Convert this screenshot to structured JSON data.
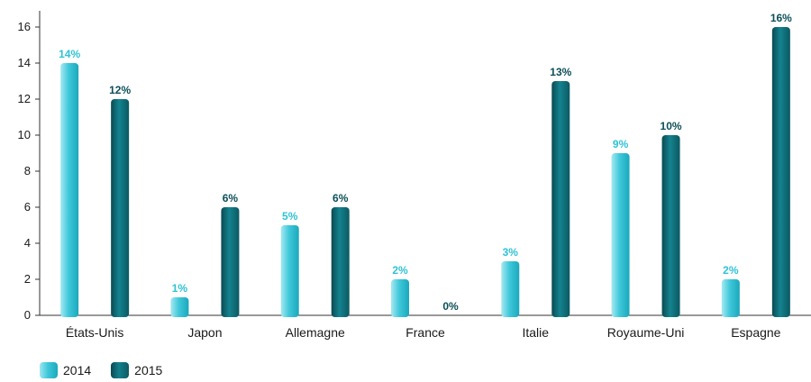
{
  "chart_data": {
    "type": "bar",
    "categories": [
      "États-Unis",
      "Japon",
      "Allemagne",
      "France",
      "Italie",
      "Royaume-Uni",
      "Espagne"
    ],
    "series": [
      {
        "name": "2014",
        "values": [
          14,
          1,
          5,
          2,
          3,
          9,
          2
        ],
        "labels": [
          "14%",
          "1%",
          "5%",
          "2%",
          "3%",
          "9%",
          "2%"
        ],
        "color": "#3fc8da",
        "label_color": "#2fc2d6"
      },
      {
        "name": "2015",
        "values": [
          12,
          6,
          6,
          0,
          13,
          10,
          16
        ],
        "labels": [
          "12%",
          "6%",
          "6%",
          "0%",
          "13%",
          "10%",
          "16%"
        ],
        "color": "#0f6670",
        "label_color": "#0c4f58"
      }
    ],
    "yticks": [
      0,
      2,
      4,
      6,
      8,
      10,
      12,
      14,
      16
    ],
    "ylim": [
      0,
      16
    ],
    "grid": false,
    "legend_position": "bottom-left"
  }
}
